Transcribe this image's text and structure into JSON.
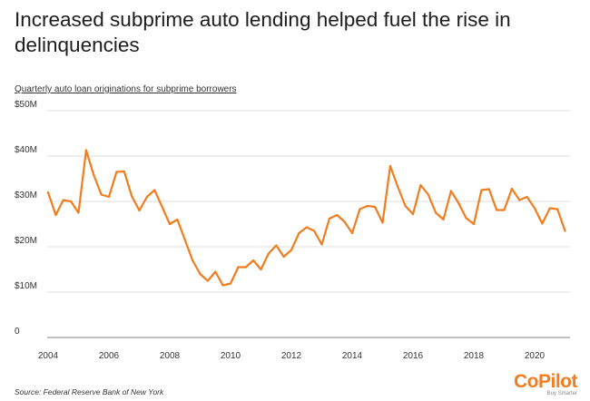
{
  "header": {
    "title": "Increased subprime auto lending helped fuel the rise in delinquencies",
    "subtitle": "Quarterly auto loan originations for subprime borrowers"
  },
  "footer": {
    "source": "Source: Federal Reserve Bank of New York",
    "logo_text": "CoPilot",
    "logo_tagline": "Buy Smarter"
  },
  "colors": {
    "line": "#f07d1f",
    "grid": "#d0d0d0",
    "baseline": "#999999"
  },
  "chart_data": {
    "type": "line",
    "title": "Increased subprime auto lending helped fuel the rise in delinquencies",
    "subtitle": "Quarterly auto loan originations for subprime borrowers",
    "xlabel": "",
    "ylabel": "",
    "unit": "$M",
    "ylim": [
      0,
      50
    ],
    "xlim": [
      2004,
      2021.25
    ],
    "grid": true,
    "y_ticks": [
      {
        "value": 0,
        "label": "0"
      },
      {
        "value": 10,
        "label": "$10M"
      },
      {
        "value": 20,
        "label": "$20M"
      },
      {
        "value": 30,
        "label": "$30M"
      },
      {
        "value": 40,
        "label": "$40M"
      },
      {
        "value": 50,
        "label": "$50M"
      }
    ],
    "x_ticks": [
      {
        "value": 2004,
        "label": "2004"
      },
      {
        "value": 2006,
        "label": "2006"
      },
      {
        "value": 2008,
        "label": "2008"
      },
      {
        "value": 2010,
        "label": "2010"
      },
      {
        "value": 2012,
        "label": "2012"
      },
      {
        "value": 2014,
        "label": "2014"
      },
      {
        "value": 2016,
        "label": "2016"
      },
      {
        "value": 2018,
        "label": "2018"
      },
      {
        "value": 2020,
        "label": "2020"
      }
    ],
    "series": [
      {
        "values": [
          [
            2004.0,
            32.0
          ],
          [
            2004.25,
            27.0
          ],
          [
            2004.5,
            30.3
          ],
          [
            2004.75,
            30.0
          ],
          [
            2005.0,
            27.5
          ],
          [
            2005.25,
            41.3
          ],
          [
            2005.5,
            35.8
          ],
          [
            2005.75,
            31.5
          ],
          [
            2006.0,
            31.0
          ],
          [
            2006.25,
            36.5
          ],
          [
            2006.5,
            36.6
          ],
          [
            2006.75,
            31.2
          ],
          [
            2007.0,
            28.0
          ],
          [
            2007.25,
            31.0
          ],
          [
            2007.5,
            32.5
          ],
          [
            2007.75,
            28.8
          ],
          [
            2008.0,
            25.0
          ],
          [
            2008.25,
            26.0
          ],
          [
            2008.5,
            21.5
          ],
          [
            2008.75,
            17.0
          ],
          [
            2009.0,
            14.0
          ],
          [
            2009.25,
            12.5
          ],
          [
            2009.5,
            14.5
          ],
          [
            2009.75,
            11.5
          ],
          [
            2010.0,
            11.9
          ],
          [
            2010.25,
            15.5
          ],
          [
            2010.5,
            15.5
          ],
          [
            2010.75,
            17.0
          ],
          [
            2011.0,
            15.0
          ],
          [
            2011.25,
            18.5
          ],
          [
            2011.5,
            20.3
          ],
          [
            2011.75,
            17.8
          ],
          [
            2012.0,
            19.3
          ],
          [
            2012.25,
            23.0
          ],
          [
            2012.5,
            24.3
          ],
          [
            2012.75,
            23.5
          ],
          [
            2013.0,
            20.5
          ],
          [
            2013.25,
            26.2
          ],
          [
            2013.5,
            27.0
          ],
          [
            2013.75,
            25.5
          ],
          [
            2014.0,
            23.0
          ],
          [
            2014.25,
            28.3
          ],
          [
            2014.5,
            29.0
          ],
          [
            2014.75,
            28.8
          ],
          [
            2015.0,
            25.3
          ],
          [
            2015.25,
            37.8
          ],
          [
            2015.5,
            33.2
          ],
          [
            2015.75,
            29.0
          ],
          [
            2016.0,
            27.2
          ],
          [
            2016.25,
            33.6
          ],
          [
            2016.5,
            31.5
          ],
          [
            2016.75,
            27.5
          ],
          [
            2017.0,
            26.0
          ],
          [
            2017.25,
            32.3
          ],
          [
            2017.5,
            29.6
          ],
          [
            2017.75,
            26.3
          ],
          [
            2018.0,
            25.0
          ],
          [
            2018.25,
            32.5
          ],
          [
            2018.5,
            32.7
          ],
          [
            2018.75,
            28.1
          ],
          [
            2019.0,
            28.1
          ],
          [
            2019.25,
            32.8
          ],
          [
            2019.5,
            30.3
          ],
          [
            2019.75,
            31.0
          ],
          [
            2020.0,
            28.5
          ],
          [
            2020.25,
            25.1
          ],
          [
            2020.5,
            28.5
          ],
          [
            2020.75,
            28.3
          ],
          [
            2021.0,
            23.5
          ]
        ]
      }
    ]
  }
}
